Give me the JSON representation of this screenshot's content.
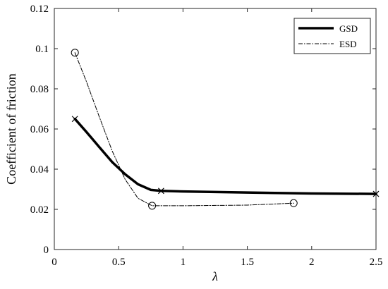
{
  "chart_data": {
    "type": "line",
    "title": "",
    "xlabel": "λ",
    "ylabel": "Coefficient of friction",
    "xlim": [
      0,
      2.5
    ],
    "ylim": [
      0,
      0.12
    ],
    "xticks": [
      0,
      0.5,
      1,
      1.5,
      2,
      2.5
    ],
    "xtick_labels": [
      "0",
      "0.5",
      "1",
      "1.5",
      "2",
      "2.5"
    ],
    "yticks": [
      0,
      0.02,
      0.04,
      0.06,
      0.08,
      0.1,
      0.12
    ],
    "ytick_labels": [
      "0",
      "0.02",
      "0.04",
      "0.06",
      "0.08",
      "0.1",
      "0.12"
    ],
    "grid": false,
    "legend_position": "top-right",
    "series": [
      {
        "name": "GSD",
        "line_style": "solid-thick",
        "marker": "x",
        "color": "#000000",
        "curve_x": [
          0.16,
          0.25,
          0.35,
          0.45,
          0.55,
          0.65,
          0.75,
          0.83,
          1.0,
          1.5,
          2.0,
          2.5
        ],
        "curve_y": [
          0.065,
          0.0585,
          0.051,
          0.0435,
          0.0375,
          0.0325,
          0.0297,
          0.0292,
          0.0289,
          0.0284,
          0.0279,
          0.0277
        ],
        "marker_x": [
          0.16,
          0.83,
          2.5
        ],
        "marker_y": [
          0.065,
          0.0292,
          0.0277
        ]
      },
      {
        "name": "ESD",
        "line_style": "dash-dot",
        "marker": "circle",
        "color": "#000000",
        "curve_x": [
          0.16,
          0.25,
          0.35,
          0.45,
          0.55,
          0.65,
          0.76,
          1.0,
          1.5,
          1.86
        ],
        "curve_y": [
          0.098,
          0.0835,
          0.066,
          0.049,
          0.035,
          0.0255,
          0.0218,
          0.0218,
          0.0221,
          0.0231
        ],
        "marker_x": [
          0.16,
          0.76,
          1.86
        ],
        "marker_y": [
          0.098,
          0.0218,
          0.0231
        ]
      }
    ]
  }
}
